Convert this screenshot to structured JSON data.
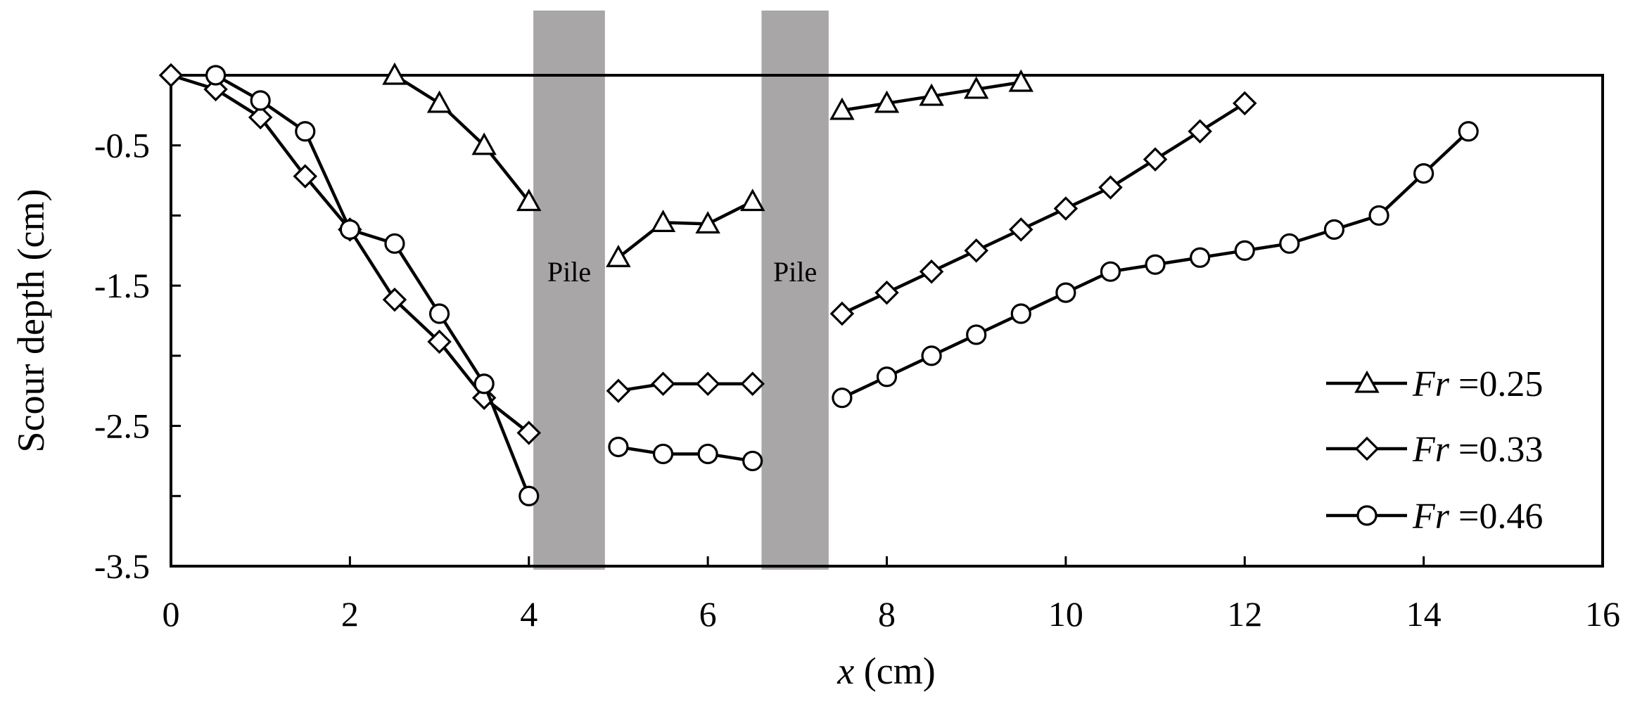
{
  "chart_data": {
    "type": "line",
    "title": "",
    "xlabel": "x (cm)",
    "xlabel_var": "x",
    "xlabel_unit": " (cm)",
    "ylabel": "Scour depth (cm)",
    "xlim": [
      0,
      16
    ],
    "ylim": [
      -3.5,
      0
    ],
    "xticks": [
      0,
      2,
      4,
      6,
      8,
      10,
      12,
      14,
      16
    ],
    "yticks": [
      -0.5,
      -1.5,
      -2.5,
      -3.5
    ],
    "xtick_labels": [
      "0",
      "2",
      "4",
      "6",
      "8",
      "10",
      "12",
      "14",
      "16"
    ],
    "ytick_labels": [
      "-0.5",
      "-1.5",
      "-2.5",
      "-3.5"
    ],
    "grid": false,
    "legend_position": "bottom-right",
    "piles": [
      {
        "label": "Pile",
        "x_from": 4.05,
        "x_to": 4.85
      },
      {
        "label": "Pile",
        "x_from": 6.6,
        "x_to": 7.35
      }
    ],
    "series": [
      {
        "name": "Fr =0.25",
        "name_var": "Fr",
        "name_rest": " =0.25",
        "marker": "triangle",
        "segments": [
          [
            [
              2.5,
              0.0
            ],
            [
              3.0,
              -0.2
            ],
            [
              3.5,
              -0.5
            ],
            [
              4.0,
              -0.9
            ]
          ],
          [
            [
              5.0,
              -1.3
            ],
            [
              5.5,
              -1.05
            ],
            [
              6.0,
              -1.06
            ],
            [
              6.5,
              -0.9
            ]
          ],
          [
            [
              7.5,
              -0.25
            ],
            [
              8.0,
              -0.2
            ],
            [
              8.5,
              -0.15
            ],
            [
              9.0,
              -0.1
            ],
            [
              9.5,
              -0.05
            ]
          ]
        ]
      },
      {
        "name": "Fr =0.33",
        "name_var": "Fr",
        "name_rest": " =0.33",
        "marker": "diamond",
        "segments": [
          [
            [
              0.0,
              0.0
            ],
            [
              0.5,
              -0.1
            ],
            [
              1.0,
              -0.3
            ],
            [
              1.5,
              -0.72
            ],
            [
              2.0,
              -1.1
            ],
            [
              2.5,
              -1.6
            ],
            [
              3.0,
              -1.9
            ],
            [
              3.5,
              -2.3
            ],
            [
              4.0,
              -2.55
            ]
          ],
          [
            [
              5.0,
              -2.25
            ],
            [
              5.5,
              -2.2
            ],
            [
              6.0,
              -2.2
            ],
            [
              6.5,
              -2.2
            ]
          ],
          [
            [
              7.5,
              -1.7
            ],
            [
              8.0,
              -1.55
            ],
            [
              8.5,
              -1.4
            ],
            [
              9.0,
              -1.25
            ],
            [
              9.5,
              -1.1
            ],
            [
              10.0,
              -0.95
            ],
            [
              10.5,
              -0.8
            ],
            [
              11.0,
              -0.6
            ],
            [
              11.5,
              -0.4
            ],
            [
              12.0,
              -0.2
            ]
          ]
        ]
      },
      {
        "name": "Fr =0.46",
        "name_var": "Fr",
        "name_rest": " =0.46",
        "marker": "circle",
        "segments": [
          [
            [
              0.5,
              0.0
            ],
            [
              1.0,
              -0.18
            ],
            [
              1.5,
              -0.4
            ],
            [
              2.0,
              -1.1
            ],
            [
              2.5,
              -1.2
            ],
            [
              3.0,
              -1.7
            ],
            [
              3.5,
              -2.2
            ],
            [
              4.0,
              -3.0
            ]
          ],
          [
            [
              5.0,
              -2.65
            ],
            [
              5.5,
              -2.7
            ],
            [
              6.0,
              -2.7
            ],
            [
              6.5,
              -2.75
            ]
          ],
          [
            [
              7.5,
              -2.3
            ],
            [
              8.0,
              -2.15
            ],
            [
              8.5,
              -2.0
            ],
            [
              9.0,
              -1.85
            ],
            [
              9.5,
              -1.7
            ],
            [
              10.0,
              -1.55
            ],
            [
              10.5,
              -1.4
            ],
            [
              11.0,
              -1.35
            ],
            [
              11.5,
              -1.3
            ],
            [
              12.0,
              -1.25
            ],
            [
              12.5,
              -1.2
            ],
            [
              13.0,
              -1.1
            ],
            [
              13.5,
              -1.0
            ],
            [
              14.0,
              -0.7
            ],
            [
              14.5,
              -0.4
            ]
          ]
        ]
      }
    ]
  }
}
